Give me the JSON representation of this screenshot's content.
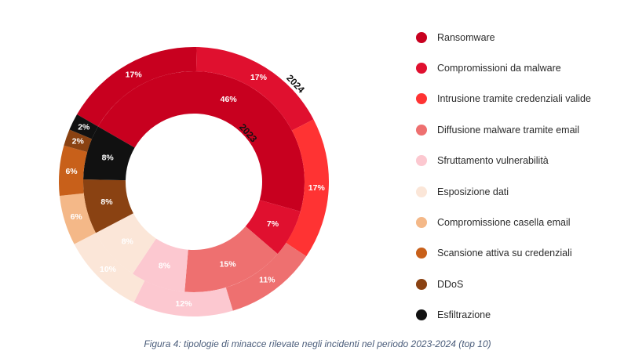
{
  "chart_data": {
    "type": "donut",
    "categories": [
      "Ransomware",
      "Compromissioni da malware",
      "Intrusione tramite credenziali valide",
      "Diffusione malware tramite email",
      "Sfruttamento vulnerabilità",
      "Esposizione dati",
      "Compromissione casella email",
      "Scansione attiva su credenziali",
      "DDoS",
      "Esfiltrazione"
    ],
    "colors": [
      "#c8001f",
      "#e0102f",
      "#ff3333",
      "#ee7070",
      "#fcc8d0",
      "#fbe6d8",
      "#f4b888",
      "#c8601a",
      "#8a4212",
      "#111111"
    ],
    "series": [
      {
        "name": "2023",
        "values": [
          46,
          7,
          0,
          15,
          8,
          8,
          0,
          0,
          8,
          8
        ],
        "labels": [
          "46%",
          "7%",
          "",
          "15%",
          "8%",
          "8%",
          "",
          "",
          "8%",
          "8%"
        ]
      },
      {
        "name": "2024",
        "values": [
          17,
          17,
          17,
          11,
          12,
          10,
          6,
          6,
          2,
          2
        ],
        "labels": [
          "17%",
          "17%",
          "17%",
          "11%",
          "12%",
          "10%",
          "6%",
          "6%",
          "2%",
          "2%"
        ]
      }
    ],
    "legend_position": "right"
  },
  "caption": "Figura 4: tipologie di minacce rilevate negli incidenti nel periodo 2023-2024 (top 10)"
}
